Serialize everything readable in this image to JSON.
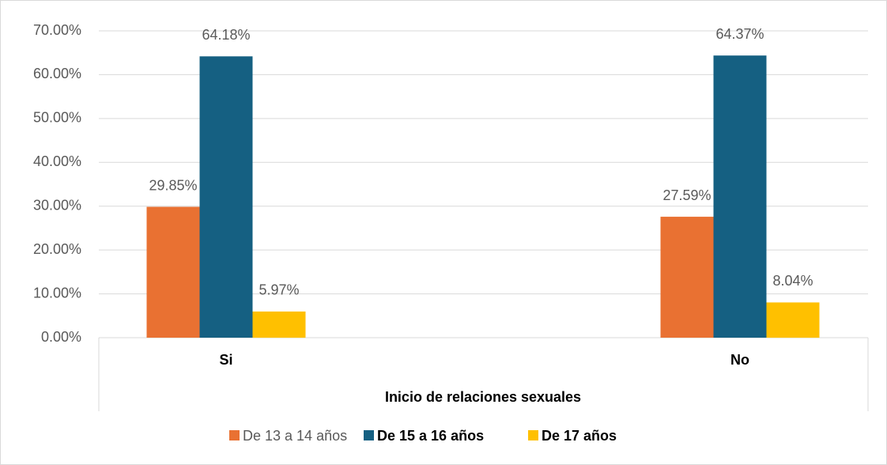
{
  "chart_data": {
    "type": "bar",
    "x_label": "Inicio de relaciones sexuales",
    "categories": [
      "Si",
      "No"
    ],
    "series": [
      {
        "name": "De 13 a 14 años",
        "color": "#E97132",
        "values": [
          29.85,
          27.59
        ],
        "value_labels": [
          "29.85%",
          "27.59%"
        ]
      },
      {
        "name": "De 15 a 16 años",
        "color": "#156082",
        "values": [
          64.18,
          64.37
        ],
        "value_labels": [
          "64.18%",
          "64.37%"
        ]
      },
      {
        "name": "De 17 años",
        "color": "#FFC000",
        "values": [
          5.97,
          8.04
        ],
        "value_labels": [
          "5.97%",
          "8.04%"
        ]
      }
    ],
    "ylim": [
      0,
      70
    ],
    "yticks": [
      {
        "value": 0,
        "label": "0.00%"
      },
      {
        "value": 10,
        "label": "10.00%"
      },
      {
        "value": 20,
        "label": "20.00%"
      },
      {
        "value": 30,
        "label": "30.00%"
      },
      {
        "value": 40,
        "label": "40.00%"
      },
      {
        "value": 50,
        "label": "50.00%"
      },
      {
        "value": 60,
        "label": "60.00%"
      },
      {
        "value": 70,
        "label": "70.00%"
      }
    ],
    "grid": true,
    "legend": "bottom"
  }
}
